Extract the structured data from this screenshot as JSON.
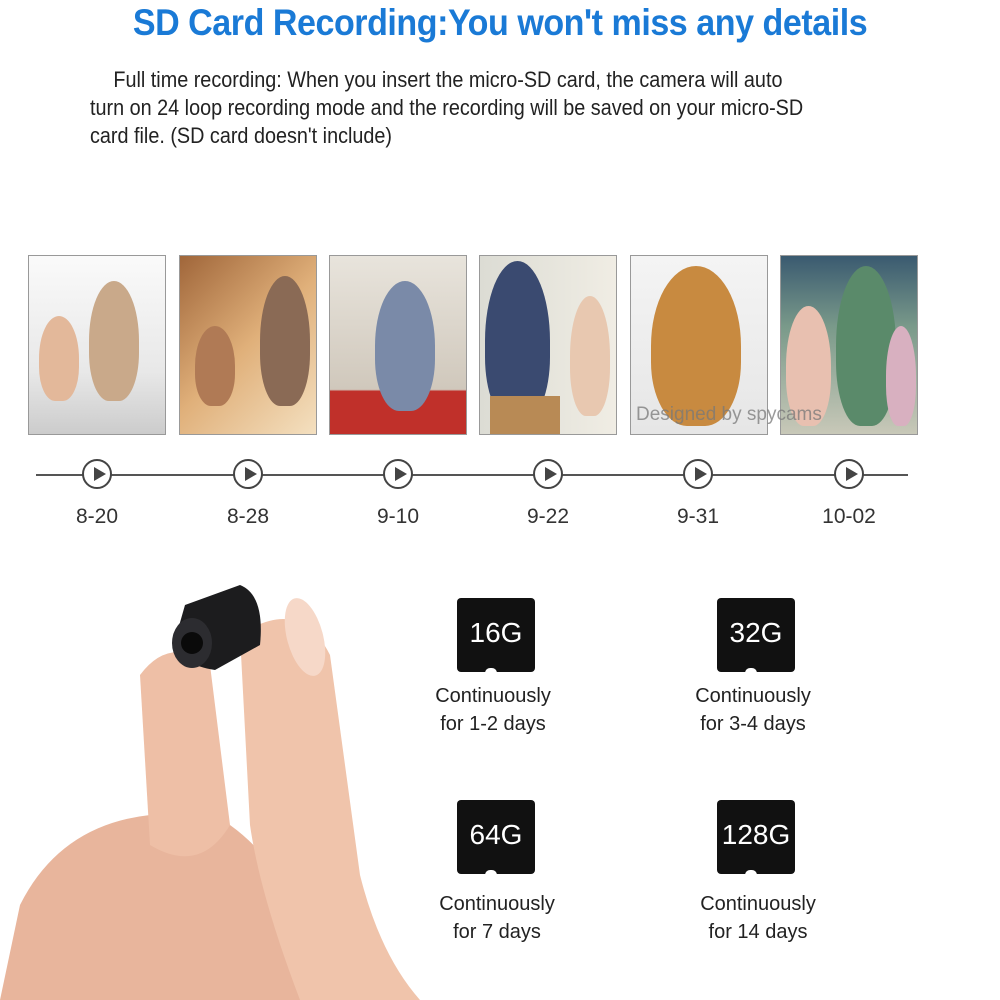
{
  "title": "SD Card Recording:You won't miss any details",
  "description": "Full time recording: When you insert the micro-SD card, the camera will auto turn on 24 loop recording mode and the recording will be saved on your micro-SD card file. (SD card doesn't include)",
  "watermark": "Designed by spycams",
  "accent_color": "#1a7ad6",
  "timeline": [
    {
      "date": "8-20",
      "icon": "play-icon"
    },
    {
      "date": "8-28",
      "icon": "play-icon"
    },
    {
      "date": "9-10",
      "icon": "play-icon"
    },
    {
      "date": "9-22",
      "icon": "play-icon"
    },
    {
      "date": "9-31",
      "icon": "play-icon"
    },
    {
      "date": "10-02",
      "icon": "play-icon"
    }
  ],
  "cards": [
    {
      "size": "16G",
      "line1": "Continuously",
      "line2": "for 1-2 days"
    },
    {
      "size": "32G",
      "line1": "Continuously",
      "line2": "for 3-4 days"
    },
    {
      "size": "64G",
      "line1": "Continuously",
      "line2": "for 7 days"
    },
    {
      "size": "128G",
      "line1": "Continuously",
      "line2": "for 14 days"
    }
  ]
}
